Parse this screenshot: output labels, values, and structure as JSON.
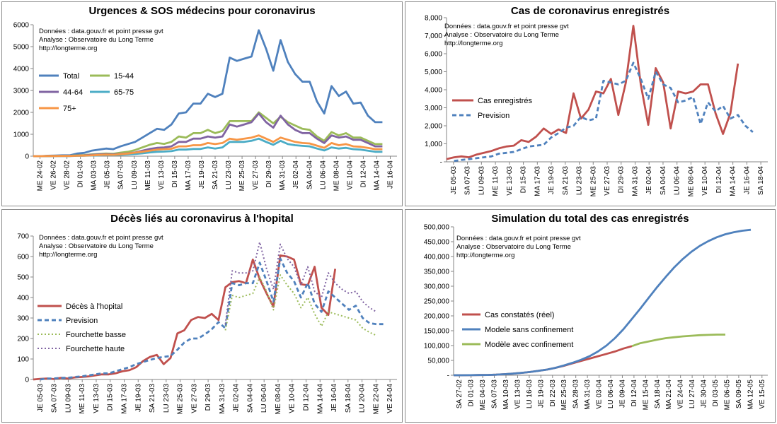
{
  "source_lines": [
    "Données : data.gouv.fr et point presse gvt",
    "Analyse : Observatoire du Long Terme",
    "http://longterme.org"
  ],
  "chart_data": [
    {
      "type": "line",
      "title": "Urgences & SOS médecins pour coronavirus",
      "ylim": [
        0,
        6000
      ],
      "yticks": [
        "0",
        "1000",
        "2000",
        "3000",
        "4000",
        "5000",
        "6000"
      ],
      "xticks": [
        "ME 24-02",
        "VE 26-02",
        "VE 28-02",
        "DI 01-03",
        "MA 03-03",
        "JE 05-03",
        "SA 07-03",
        "LU 09-03",
        "ME 11-03",
        "VE 13-03",
        "DI 15-03",
        "MA 17-03",
        "JE 19-03",
        "SA 21-03",
        "LU 23-03",
        "ME 25-03",
        "VE 27-03",
        "DI 29-03",
        "MA 31-03",
        "JE 02-04",
        "SA 04-04",
        "LU 06-04",
        "ME 08-04",
        "VE 10-04",
        "DI 12-04",
        "MA 14-04",
        "JE 16-04"
      ],
      "legend": "top-left",
      "grid": false,
      "series": [
        {
          "name": "Total",
          "color": "#4f81bd",
          "dash": "",
          "values": [
            0,
            0,
            20,
            30,
            40,
            40,
            120,
            150,
            250,
            300,
            350,
            320,
            450,
            550,
            650,
            850,
            1050,
            1250,
            1200,
            1450,
            1950,
            2000,
            2400,
            2400,
            2850,
            2700,
            2850,
            4500,
            4350,
            4450,
            4550,
            5750,
            4900,
            3900,
            5300,
            4300,
            3750,
            3400,
            3400,
            2500,
            1950,
            3200,
            2750,
            2950,
            2400,
            2450,
            1850,
            1550,
            1550
          ]
        },
        {
          "name": "15-44",
          "color": "#9bbb59",
          "dash": "",
          "values": [
            0,
            0,
            5,
            10,
            15,
            15,
            40,
            50,
            80,
            100,
            120,
            110,
            160,
            200,
            280,
            400,
            520,
            600,
            560,
            650,
            900,
            850,
            1050,
            1050,
            1200,
            1050,
            1150,
            1600,
            1600,
            1600,
            1600,
            2000,
            1750,
            1500,
            1800,
            1550,
            1400,
            1250,
            1200,
            900,
            700,
            1100,
            950,
            1050,
            850,
            850,
            700,
            550,
            550
          ]
        },
        {
          "name": "44-64",
          "color": "#8064a2",
          "dash": "",
          "values": [
            0,
            0,
            5,
            10,
            10,
            10,
            30,
            35,
            60,
            80,
            90,
            80,
            110,
            130,
            170,
            250,
            330,
            380,
            400,
            450,
            650,
            650,
            800,
            800,
            900,
            850,
            900,
            1450,
            1350,
            1450,
            1550,
            1950,
            1550,
            1300,
            1850,
            1450,
            1200,
            1050,
            1050,
            800,
            600,
            950,
            850,
            900,
            750,
            750,
            600,
            450,
            450
          ]
        },
        {
          "name": "65-75",
          "color": "#4bacc6",
          "dash": "",
          "values": [
            0,
            0,
            0,
            5,
            5,
            5,
            15,
            20,
            30,
            40,
            50,
            45,
            60,
            80,
            100,
            130,
            170,
            200,
            210,
            230,
            300,
            300,
            330,
            330,
            400,
            350,
            400,
            650,
            650,
            650,
            700,
            800,
            650,
            520,
            700,
            550,
            500,
            470,
            450,
            350,
            260,
            400,
            350,
            380,
            320,
            300,
            250,
            200,
            200
          ]
        },
        {
          "name": "75+",
          "color": "#f79646",
          "dash": "",
          "values": [
            0,
            0,
            5,
            5,
            10,
            10,
            20,
            25,
            40,
            55,
            70,
            60,
            90,
            120,
            160,
            200,
            250,
            300,
            320,
            340,
            450,
            450,
            500,
            500,
            600,
            550,
            600,
            800,
            750,
            800,
            850,
            950,
            800,
            650,
            850,
            750,
            650,
            600,
            580,
            480,
            380,
            600,
            500,
            550,
            450,
            430,
            380,
            320,
            320
          ]
        }
      ]
    },
    {
      "type": "line",
      "title": "Cas de coronavirus enregistrés",
      "ylim": [
        0,
        8000
      ],
      "yticks": [
        "-",
        "1,000",
        "2,000",
        "3,000",
        "4,000",
        "5,000",
        "6,000",
        "7,000",
        "8,000"
      ],
      "xticks": [
        "JE 05-03",
        "SA 07-03",
        "LU 09-03",
        "ME 11-03",
        "VE 13-03",
        "DI 15-03",
        "MA 17-03",
        "JE 19-03",
        "SA 21-03",
        "LU 23-03",
        "ME 25-03",
        "VE 27-03",
        "DI 29-03",
        "MA 31-03",
        "JE 02-04",
        "SA 04-04",
        "LU 06-04",
        "ME 08-04",
        "VE 10-04",
        "DI 12-04",
        "MA 14-04",
        "JE 16-04",
        "SA 18-04"
      ],
      "legend": "left",
      "grid": false,
      "series": [
        {
          "name": "Cas enregistrés",
          "color": "#c0504d",
          "dash": "",
          "values": [
            150,
            250,
            300,
            250,
            400,
            500,
            600,
            750,
            850,
            900,
            1200,
            1100,
            1400,
            1850,
            1550,
            1800,
            1600,
            3800,
            2400,
            2900,
            3900,
            3800,
            4600,
            2600,
            4400,
            7550,
            4300,
            2050,
            5200,
            4400,
            1850,
            3900,
            3800,
            3900,
            4300,
            4300,
            2700,
            1550,
            2700,
            5450
          ]
        },
        {
          "name": "Prevision",
          "color": "#4f81bd",
          "dash": "6,4",
          "values": [
            null,
            50,
            100,
            150,
            200,
            250,
            300,
            450,
            500,
            550,
            700,
            850,
            900,
            950,
            1350,
            1600,
            1900,
            2000,
            2500,
            2300,
            2400,
            4500,
            4400,
            4300,
            4500,
            5500,
            4600,
            3500,
            5000,
            4300,
            4100,
            3300,
            3400,
            3600,
            2100,
            3300,
            2800,
            3100,
            2400,
            2600,
            2000,
            1650
          ]
        }
      ]
    },
    {
      "type": "line",
      "title": "Décès liés au coronavirus à l'hopital",
      "ylim": [
        0,
        700
      ],
      "yticks": [
        "0",
        "100",
        "200",
        "300",
        "400",
        "500",
        "600",
        "700"
      ],
      "xticks": [
        "JE 05-03",
        "SA 07-03",
        "LU 09-03",
        "ME 11-03",
        "VE 13-03",
        "DI 15-03",
        "MA 17-03",
        "JE 19-03",
        "SA 21-03",
        "LU 23-03",
        "ME 25-03",
        "VE 27-03",
        "DI 29-03",
        "MA 31-03",
        "JE 02-04",
        "SA 04-04",
        "LU 06-04",
        "ME 08-04",
        "VE 10-04",
        "DI 12-04",
        "MA 14-04",
        "JE 16-04",
        "SA 18-04",
        "LU 20-04",
        "ME 22-04",
        "VE 24-04"
      ],
      "legend": "left",
      "grid": false,
      "series": [
        {
          "name": "Décès à l'hopital",
          "color": "#c0504d",
          "dash": "",
          "values": [
            0,
            3,
            5,
            2,
            8,
            5,
            10,
            12,
            15,
            20,
            25,
            25,
            30,
            40,
            45,
            60,
            90,
            110,
            120,
            75,
            105,
            225,
            240,
            290,
            305,
            300,
            320,
            290,
            450,
            475,
            480,
            470,
            585,
            490,
            420,
            355,
            605,
            600,
            585,
            465,
            460,
            550,
            350,
            315,
            540
          ]
        },
        {
          "name": "Prevision",
          "color": "#4f81bd",
          "dash": "6,4",
          "values": [
            null,
            0,
            5,
            5,
            8,
            8,
            12,
            15,
            20,
            25,
            30,
            30,
            40,
            50,
            60,
            75,
            85,
            95,
            105,
            110,
            115,
            145,
            180,
            200,
            200,
            220,
            245,
            280,
            250,
            470,
            460,
            470,
            470,
            570,
            480,
            380,
            590,
            520,
            480,
            400,
            470,
            370,
            330,
            430,
            400,
            370,
            340,
            360,
            300,
            275,
            270,
            270
          ]
        },
        {
          "name": "Fourchette basse",
          "color": "#9bbb59",
          "dash": "2,3",
          "values": [
            null,
            null,
            null,
            null,
            null,
            null,
            null,
            null,
            null,
            null,
            null,
            null,
            null,
            null,
            null,
            null,
            null,
            null,
            null,
            null,
            null,
            null,
            null,
            null,
            null,
            null,
            null,
            null,
            240,
            410,
            400,
            410,
            420,
            500,
            430,
            340,
            510,
            460,
            420,
            350,
            400,
            320,
            260,
            330,
            320,
            310,
            300,
            290,
            250,
            230,
            215
          ]
        },
        {
          "name": "Fourchette haute",
          "color": "#8064a2",
          "dash": "2,3",
          "values": [
            null,
            null,
            null,
            null,
            null,
            null,
            null,
            null,
            null,
            null,
            null,
            null,
            null,
            null,
            null,
            null,
            null,
            null,
            null,
            null,
            null,
            null,
            null,
            null,
            null,
            null,
            null,
            null,
            270,
            530,
            520,
            520,
            530,
            670,
            540,
            440,
            660,
            590,
            550,
            460,
            550,
            430,
            400,
            520,
            470,
            440,
            420,
            430,
            380,
            350,
            330
          ]
        }
      ]
    },
    {
      "type": "line",
      "title": "Simulation du total des cas enregistrés",
      "ylim": [
        0,
        500000
      ],
      "yticks": [
        "-",
        "50,000",
        "100,000",
        "150,000",
        "200,000",
        "250,000",
        "300,000",
        "350,000",
        "400,000",
        "450,000",
        "500,000"
      ],
      "xticks": [
        "SA 27-02",
        "DI 01-03",
        "ME 04-03",
        "SA 07-03",
        "MA 10-03",
        "VE 13-03",
        "LU 16-03",
        "JE 19-03",
        "DI 22-03",
        "ME 25-03",
        "SA 28-03",
        "MA 31-03",
        "VE 03-04",
        "LU 06-04",
        "JE 09-04",
        "DI 12-04",
        "ME 15-04",
        "SA 18-04",
        "MA 21-04",
        "VE 24-04",
        "LU 27-04",
        "JE 30-04",
        "DI 03-05",
        "ME 06-05",
        "SA 09-05",
        "MA 12-05",
        "VE 15-05"
      ],
      "legend": "left",
      "grid": false,
      "series": [
        {
          "name": "Cas constatés (réel)",
          "color": "#c0504d",
          "dash": "",
          "values": [
            0,
            100,
            300,
            600,
            1000,
            2000,
            3500,
            5500,
            8000,
            11000,
            15000,
            19000,
            25000,
            32000,
            40000,
            48000,
            56000,
            64000,
            72000,
            80000,
            90000,
            98000
          ]
        },
        {
          "name": "Modele sans confinement",
          "color": "#4f81bd",
          "dash": "",
          "values": [
            0,
            100,
            300,
            600,
            1000,
            2000,
            3500,
            5500,
            8000,
            11000,
            15000,
            19000,
            25000,
            33000,
            42000,
            52000,
            64000,
            80000,
            100000,
            125000,
            155000,
            190000,
            225000,
            262000,
            298000,
            332000,
            364000,
            392000,
            416000,
            436000,
            452000,
            465000,
            475000,
            482000,
            487000,
            490000
          ]
        },
        {
          "name": "Modèle avec confinement",
          "color": "#9bbb59",
          "dash": "",
          "values": [
            null,
            null,
            null,
            null,
            null,
            null,
            null,
            null,
            null,
            null,
            null,
            null,
            null,
            null,
            null,
            null,
            null,
            null,
            null,
            null,
            null,
            98000,
            108000,
            114000,
            120000,
            125000,
            128000,
            131000,
            133000,
            135000,
            136000,
            137000,
            137000
          ]
        }
      ]
    }
  ]
}
